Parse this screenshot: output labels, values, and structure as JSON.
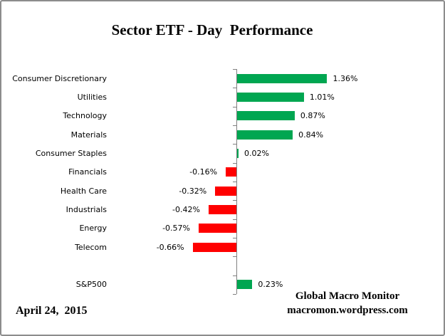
{
  "title": "Sector ETF - Day  Performance",
  "date_label": "April 24,  2015",
  "credit": {
    "line1": "Global Macro Monitor",
    "line2": "macromon.wordpress.com"
  },
  "colors": {
    "positive_bar": "#00A651",
    "negative_bar": "#FF0000",
    "axis": "#808080",
    "border": "#8C8C8C",
    "text": "#000000",
    "background": "#FFFFFF"
  },
  "chart_data": {
    "type": "bar",
    "orientation": "horizontal",
    "title": "Sector ETF - Day  Performance",
    "xlabel": "",
    "ylabel": "",
    "grid": false,
    "legend": false,
    "x_axis_labels_visible": false,
    "xlim": [
      -1.1,
      3.2
    ],
    "categories": [
      "Consumer Discretionary",
      "Utilities",
      "Technology",
      "Materials",
      "Consumer Staples",
      "Financials",
      "Health Care",
      "Industrials",
      "Energy",
      "Telecom",
      "",
      "S&P500"
    ],
    "values": [
      1.36,
      1.01,
      0.87,
      0.84,
      0.02,
      -0.16,
      -0.32,
      -0.42,
      -0.57,
      -0.66,
      null,
      0.23
    ],
    "value_labels": [
      "1.36%",
      "1.01%",
      "0.87%",
      "0.84%",
      "0.02%",
      "-0.16%",
      "-0.32%",
      "-0.42%",
      "-0.57%",
      "-0.66%",
      "",
      "0.23%"
    ]
  }
}
